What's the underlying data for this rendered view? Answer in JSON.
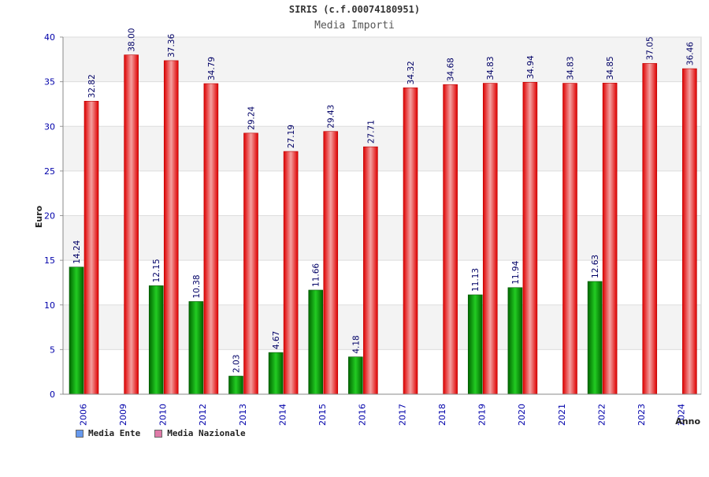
{
  "chart_data": {
    "type": "bar",
    "title": "SIRIS (c.f.00074180951)",
    "subtitle": "Media Importi",
    "xlabel": "Anno",
    "ylabel": "Euro",
    "ylim": [
      0,
      40
    ],
    "yticks": [
      0,
      5,
      10,
      15,
      20,
      25,
      30,
      35,
      40
    ],
    "categories": [
      "2006",
      "2009",
      "2010",
      "2012",
      "2013",
      "2014",
      "2015",
      "2016",
      "2017",
      "2018",
      "2019",
      "2020",
      "2021",
      "2022",
      "2023",
      "2024"
    ],
    "series": [
      {
        "name": "Media Ente",
        "color": "#009900",
        "legend_color": "#6699ee",
        "values": [
          14.24,
          null,
          12.15,
          10.38,
          2.03,
          4.67,
          11.66,
          4.18,
          null,
          null,
          11.13,
          11.94,
          null,
          12.63,
          null,
          null
        ],
        "labels": [
          "14.24",
          null,
          "12.15",
          "10.38",
          "2.03",
          "4.67",
          "11.66",
          "4.18",
          null,
          null,
          "11.13",
          "11.94",
          null,
          "12.63",
          null,
          null
        ]
      },
      {
        "name": "Media Nazionale",
        "color": "#ee0000",
        "legend_color": "#e07aa8",
        "values": [
          32.82,
          38.0,
          37.36,
          34.79,
          29.24,
          27.19,
          29.43,
          27.71,
          34.32,
          34.68,
          34.83,
          34.94,
          34.83,
          34.85,
          37.05,
          36.46
        ],
        "labels": [
          "32.82",
          "38.00",
          "37.36",
          "34.79",
          "29.24",
          "27.19",
          "29.43",
          "27.71",
          "34.32",
          "34.68",
          "34.83",
          "34.94",
          "34.83",
          "34.85",
          "37.05",
          "36.46"
        ]
      }
    ],
    "grid": true,
    "legend": "bottom-left"
  }
}
